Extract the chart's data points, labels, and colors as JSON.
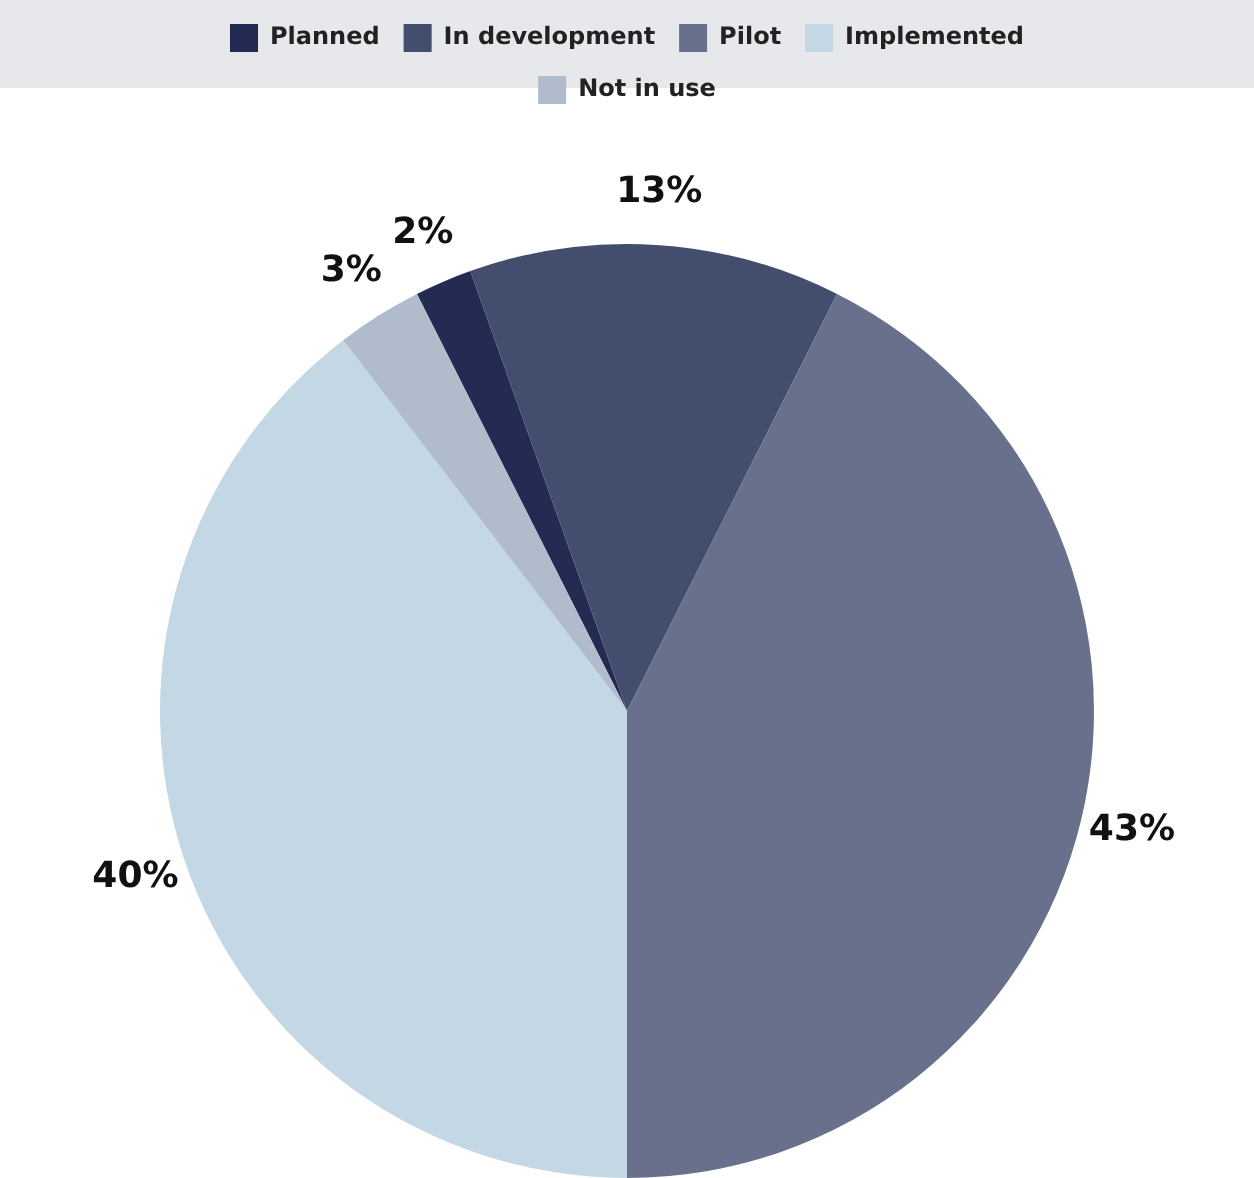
{
  "chart_data": {
    "type": "pie",
    "categories": [
      "Planned",
      "In development",
      "Pilot",
      "Implemented",
      "Not in use"
    ],
    "values": [
      2,
      13,
      43,
      40,
      3
    ],
    "colors": [
      "#232b52",
      "#434d6e",
      "#68708c",
      "#c3d8e4",
      "#b0bccb"
    ],
    "value_labels": [
      "2%",
      "13%",
      "43%",
      "40%",
      "3%"
    ],
    "legend": "top"
  }
}
